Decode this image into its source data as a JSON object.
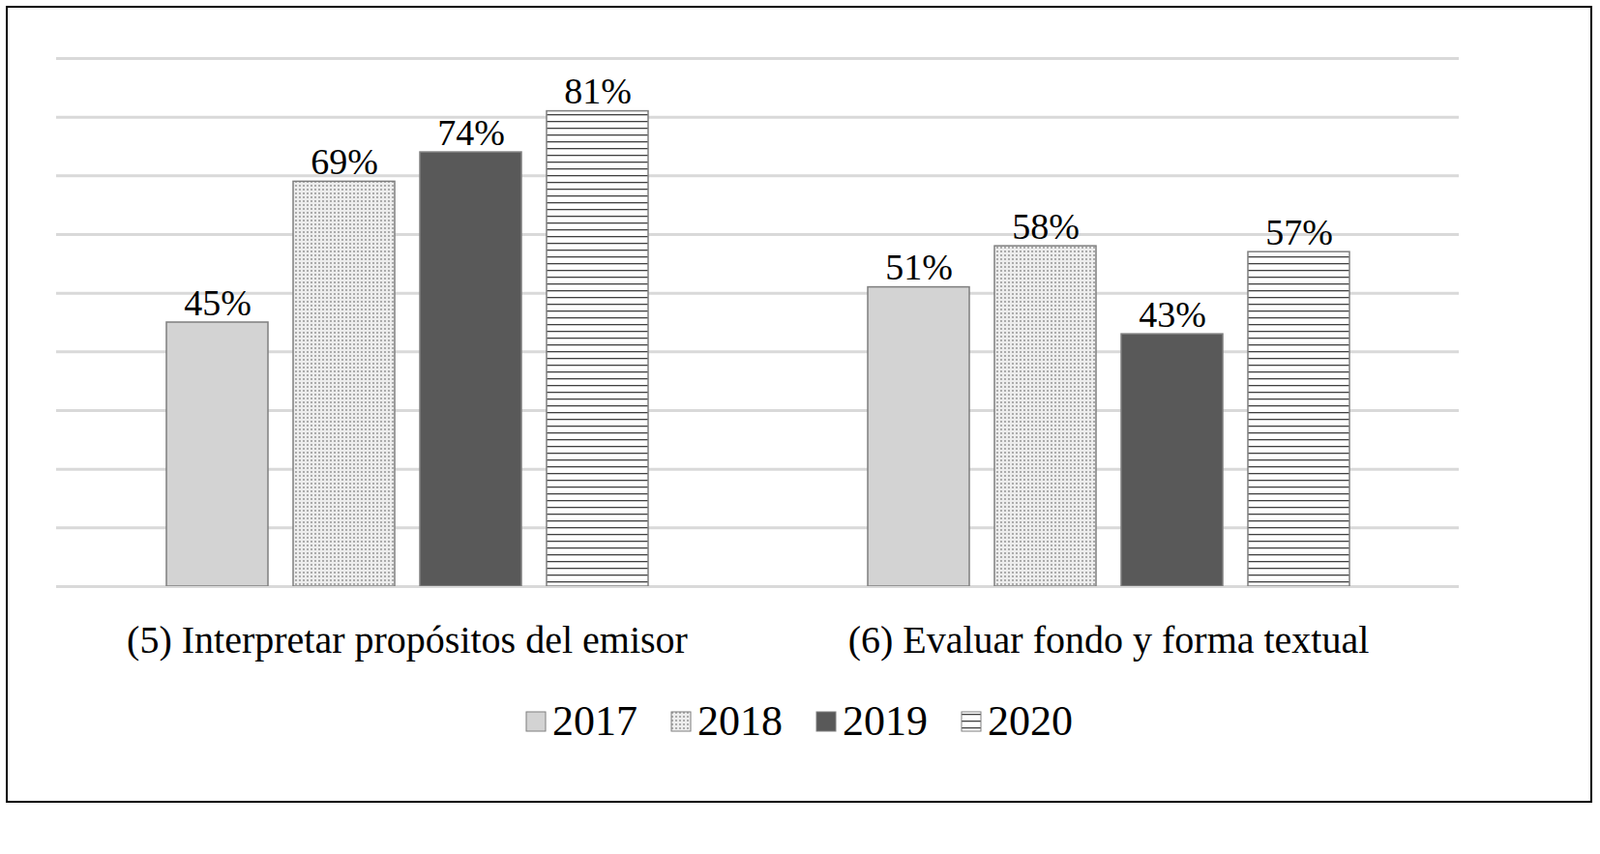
{
  "chart_data": {
    "type": "bar",
    "categories": [
      "(5) Interpretar propósitos del emisor",
      "(6) Evaluar fondo y forma textual"
    ],
    "series": [
      {
        "name": "2017",
        "color": "#d3d3d3",
        "values": [
          45,
          51
        ],
        "value_labels": [
          "45%",
          "51%"
        ]
      },
      {
        "name": "2018",
        "color": "#8c8c8c",
        "values": [
          69,
          58
        ],
        "value_labels": [
          "69%",
          "58%"
        ]
      },
      {
        "name": "2019",
        "color": "#595959",
        "values": [
          74,
          43
        ],
        "value_labels": [
          "74%",
          "43%"
        ]
      },
      {
        "name": "2020",
        "color": "#404040",
        "values": [
          81,
          57
        ],
        "value_labels": [
          "81%",
          "57%"
        ]
      }
    ],
    "ylim": [
      0,
      90
    ],
    "yticks": [
      0,
      10,
      20,
      30,
      40,
      50,
      60,
      70,
      80,
      90
    ],
    "grid": true,
    "data_labels": true,
    "tick_labels": "x",
    "legend": "bottom"
  }
}
